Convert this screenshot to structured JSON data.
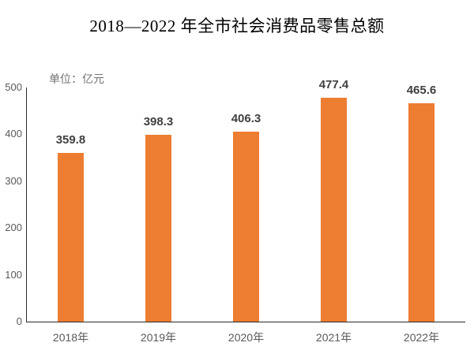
{
  "chart_data": {
    "type": "bar",
    "title": "2018—2022 年全市社会消费品零售总额",
    "unit_label": "单位：亿元",
    "categories": [
      "2018年",
      "2019年",
      "2020年",
      "2021年",
      "2022年"
    ],
    "values": [
      359.8,
      398.3,
      406.3,
      477.4,
      465.6
    ],
    "data_labels": [
      "359.8",
      "398.3",
      "406.3",
      "477.4",
      "465.6"
    ],
    "xlabel": "",
    "ylabel": "",
    "ylim": [
      0,
      500
    ],
    "yticks": [
      0,
      100,
      200,
      300,
      400,
      500
    ],
    "grid": false,
    "legend": "none"
  },
  "colors": {
    "bar": "#ED7D31",
    "axis_line": "#2b2b2b",
    "tick_text": "#595959",
    "data_label_text": "#404040",
    "unit_text": "#737373",
    "title_text": "#000000",
    "background": "#FFFFFF"
  }
}
